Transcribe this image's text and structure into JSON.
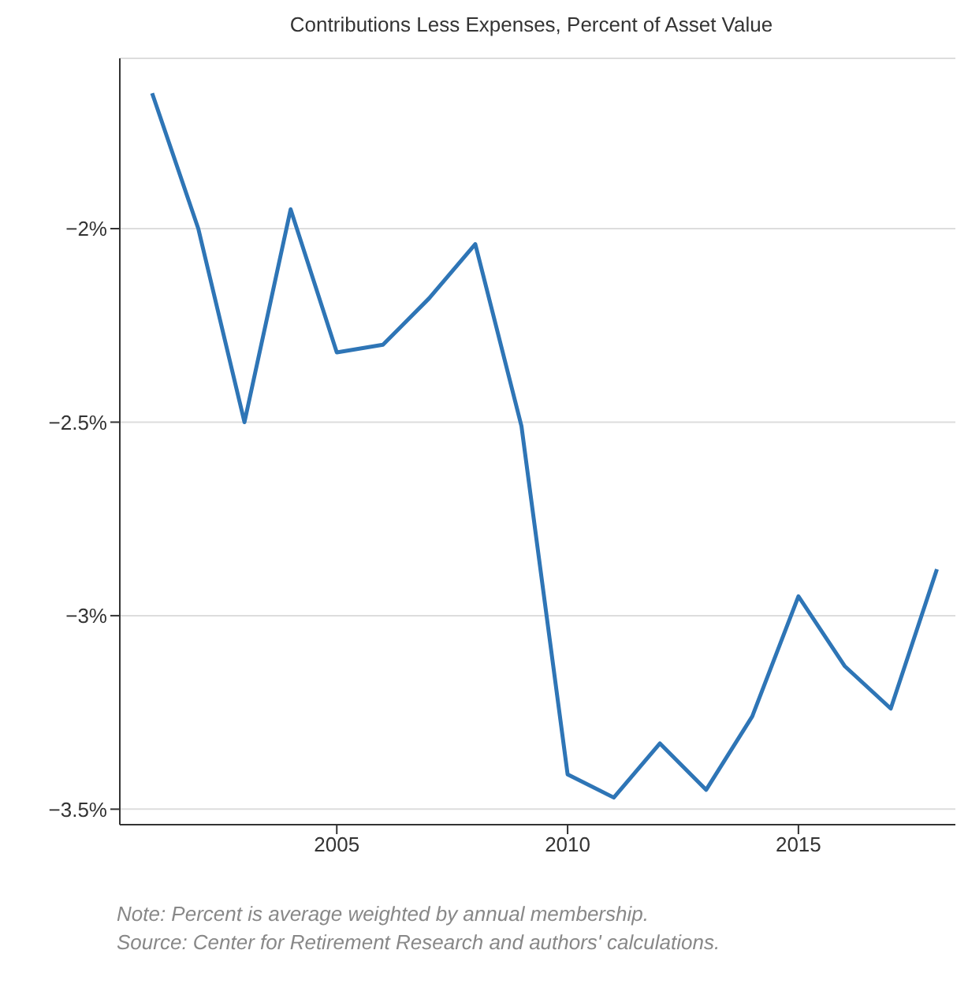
{
  "chart_data": {
    "type": "line",
    "title": "Contributions Less Expenses, Percent of Asset Value",
    "x": [
      2001,
      2002,
      2003,
      2004,
      2005,
      2006,
      2007,
      2008,
      2009,
      2010,
      2011,
      2012,
      2013,
      2014,
      2015,
      2016,
      2017,
      2018
    ],
    "series": [
      {
        "color": "#2e75b6",
        "values": [
          -1.65,
          -2.0,
          -2.5,
          -1.95,
          -2.32,
          -2.3,
          -2.18,
          -2.04,
          -2.51,
          -3.41,
          -3.47,
          -3.33,
          -3.45,
          -3.26,
          -2.95,
          -3.13,
          -3.24,
          -2.88
        ]
      }
    ],
    "xlim": [
      2000.3,
      2018.4
    ],
    "xticks": [
      2005,
      2010,
      2015
    ],
    "ylim": [
      -3.54,
      -1.56
    ],
    "yticks": [
      {
        "value": -2,
        "label": "−2%"
      },
      {
        "value": -2.5,
        "label": "−2.5%"
      },
      {
        "value": -3,
        "label": "−3%"
      },
      {
        "value": -3.5,
        "label": "−3.5%"
      }
    ],
    "grid": "y",
    "legend": false,
    "marker": "none",
    "line_style": "solid",
    "annotations": [
      "Note: Percent is average weighted by annual membership.",
      "Source: Center for Retirement Research and authors' calculations."
    ]
  }
}
